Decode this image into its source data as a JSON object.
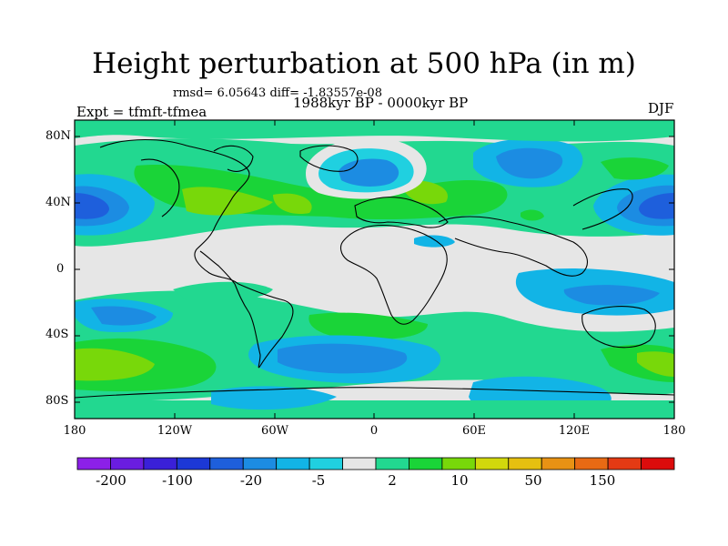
{
  "title": "Height perturbation at 500 hPa (in m)",
  "stats": "rmsd= 6.05643 diff= -1.83557e-08",
  "expt": "Expt = tfmft-tfmea",
  "period": "1988kyr BP - 0000kyr BP",
  "season": "DJF",
  "lat_labels": [
    "80N",
    "40N",
    "0",
    "40S",
    "80S"
  ],
  "lon_labels": [
    "180",
    "120W",
    "60W",
    "0",
    "60E",
    "120E",
    "180"
  ],
  "colorbar": {
    "colors": [
      "#8c20e8",
      "#6a1de0",
      "#3a20d8",
      "#1c38d6",
      "#1e5fdc",
      "#1c8ce2",
      "#12b4e6",
      "#20d0e0",
      "#e6e6e6",
      "#22d890",
      "#1ad438",
      "#78d80a",
      "#d2d80c",
      "#e6c010",
      "#e89214",
      "#e86a14",
      "#e43a14",
      "#dc0c0c"
    ],
    "labels": [
      "-200",
      "-100",
      "-20",
      "-5",
      "2",
      "10",
      "50",
      "150"
    ]
  }
}
